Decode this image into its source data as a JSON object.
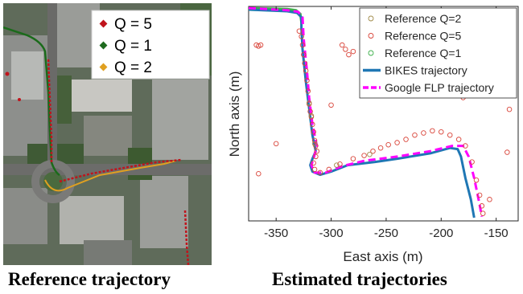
{
  "captions": {
    "left": "Reference trajectory",
    "right": "Estimated trajectories"
  },
  "map_legend": {
    "items": [
      {
        "label": "Q = 5",
        "color": "#c0141c"
      },
      {
        "label": "Q = 1",
        "color": "#1f6b1f"
      },
      {
        "label": "Q = 2",
        "color": "#e0a020"
      }
    ]
  },
  "chart_data": {
    "type": "scatter",
    "title": "",
    "xlabel": "East axis (m)",
    "ylabel": "North axis (m)",
    "xlim": [
      -375,
      -130
    ],
    "ylim": [
      -1,
      1
    ],
    "xticks": [
      -350,
      -300,
      -250,
      -200,
      -150
    ],
    "xtick_labels": [
      "-350",
      "-300",
      "-250",
      "-200",
      "-150"
    ],
    "grid": false,
    "legend_position": "top-right",
    "legend": [
      {
        "label": "Reference Q=2",
        "kind": "marker",
        "color": "#a08a4a"
      },
      {
        "label": "Reference Q=5",
        "kind": "marker",
        "color": "#d9453a"
      },
      {
        "label": "Reference Q=1",
        "kind": "marker",
        "color": "#3cb04a"
      },
      {
        "label": "BIKES trajectory",
        "kind": "line",
        "color": "#1f77b4"
      },
      {
        "label": "Google FLP trajectory",
        "kind": "dash",
        "color": "#ff00ff"
      }
    ],
    "series": [
      {
        "name": "Reference Q=1",
        "color": "#3cb04a",
        "style": "line",
        "points": [
          [
            -375,
            0.985
          ],
          [
            -340,
            0.975
          ],
          [
            -332,
            0.965
          ],
          [
            -328,
            0.93
          ],
          [
            -327,
            0.85
          ]
        ]
      },
      {
        "name": "BIKES trajectory",
        "color": "#1f77b4",
        "style": "line",
        "points": [
          [
            -375,
            0.97
          ],
          [
            -340,
            0.955
          ],
          [
            -331,
            0.94
          ],
          [
            -327,
            0.9
          ],
          [
            -327,
            0.8
          ],
          [
            -326,
            0.6
          ],
          [
            -323,
            0.3
          ],
          [
            -320,
            0.05
          ],
          [
            -317,
            -0.2
          ],
          [
            -314,
            -0.35
          ],
          [
            -317,
            -0.42
          ],
          [
            -319,
            -0.48
          ],
          [
            -317,
            -0.54
          ],
          [
            -310,
            -0.57
          ],
          [
            -300,
            -0.54
          ],
          [
            -285,
            -0.48
          ],
          [
            -260,
            -0.45
          ],
          [
            -240,
            -0.42
          ],
          [
            -210,
            -0.37
          ],
          [
            -192,
            -0.32
          ],
          [
            -185,
            -0.33
          ],
          [
            -182,
            -0.4
          ],
          [
            -178,
            -0.6
          ],
          [
            -173,
            -0.8
          ],
          [
            -170,
            -0.97
          ]
        ]
      },
      {
        "name": "Google FLP trajectory",
        "color": "#ff00ff",
        "style": "dash",
        "points": [
          [
            -375,
            0.985
          ],
          [
            -340,
            0.965
          ],
          [
            -330,
            0.95
          ],
          [
            -326,
            0.9
          ],
          [
            -325,
            0.7
          ],
          [
            -322,
            0.4
          ],
          [
            -320,
            0.15
          ],
          [
            -317,
            -0.1
          ],
          [
            -313,
            -0.3
          ],
          [
            -316,
            -0.42
          ],
          [
            -318,
            -0.48
          ],
          [
            -315,
            -0.55
          ],
          [
            -305,
            -0.55
          ],
          [
            -290,
            -0.49
          ],
          [
            -270,
            -0.44
          ],
          [
            -240,
            -0.4
          ],
          [
            -210,
            -0.35
          ],
          [
            -190,
            -0.3
          ],
          [
            -180,
            -0.3
          ],
          [
            -175,
            -0.4
          ],
          [
            -170,
            -0.6
          ],
          [
            -166,
            -0.8
          ],
          [
            -163,
            -0.96
          ]
        ]
      },
      {
        "name": "Reference Q=5",
        "color": "#d9453a",
        "style": "marker",
        "points": [
          [
            -368,
            0.64
          ],
          [
            -366,
            0.63
          ],
          [
            -364,
            0.64
          ],
          [
            -329,
            0.77
          ],
          [
            -327,
            0.72
          ],
          [
            -326,
            0.64
          ],
          [
            -325,
            0.55
          ],
          [
            -324,
            0.47
          ],
          [
            -323,
            0.4
          ],
          [
            -322,
            0.31
          ],
          [
            -321,
            0.21
          ],
          [
            -320,
            0.09
          ],
          [
            -319,
            0.02
          ],
          [
            -318,
            -0.03
          ],
          [
            -317,
            -0.1
          ],
          [
            -316,
            -0.17
          ],
          [
            -315,
            -0.25
          ],
          [
            -314,
            -0.3
          ],
          [
            -313,
            -0.35
          ],
          [
            -314,
            -0.4
          ],
          [
            -316,
            -0.46
          ],
          [
            -315,
            -0.52
          ],
          [
            -310,
            -0.55
          ],
          [
            -302,
            -0.52
          ],
          [
            -292,
            -0.47
          ],
          [
            -280,
            -0.42
          ],
          [
            -270,
            -0.39
          ],
          [
            -262,
            -0.35
          ],
          [
            -255,
            -0.32
          ],
          [
            -248,
            -0.29
          ],
          [
            -240,
            -0.27
          ],
          [
            -232,
            -0.24
          ],
          [
            -224,
            -0.2
          ],
          [
            -216,
            -0.18
          ],
          [
            -208,
            -0.16
          ],
          [
            -200,
            -0.17
          ],
          [
            -192,
            -0.2
          ],
          [
            -184,
            -0.24
          ],
          [
            -178,
            -0.3
          ],
          [
            -172,
            -0.45
          ],
          [
            -168,
            -0.62
          ],
          [
            -165,
            -0.76
          ],
          [
            -163,
            -0.86
          ],
          [
            -162,
            -0.93
          ],
          [
            -290,
            0.64
          ],
          [
            -287,
            0.6
          ],
          [
            -284,
            0.55
          ],
          [
            -280,
            0.58
          ],
          [
            -268,
            0.66
          ],
          [
            -265,
            0.59
          ],
          [
            -244,
            0.52
          ],
          [
            -211,
            0.64
          ],
          [
            -208,
            0.56
          ],
          [
            -205,
            0.6
          ],
          [
            -170,
            0.45
          ],
          [
            -180,
            0.15
          ],
          [
            -138,
            0.04
          ],
          [
            -140,
            -0.36
          ],
          [
            -300,
            0.08
          ],
          [
            -350,
            -0.28
          ],
          [
            -366,
            -0.56
          ],
          [
            -156,
            -0.8
          ]
        ]
      },
      {
        "name": "Reference Q=2",
        "color": "#a08a4a",
        "style": "marker",
        "points": [
          [
            -320,
            0.1
          ],
          [
            -318,
            -0.02
          ],
          [
            -315,
            -0.28
          ],
          [
            -295,
            -0.48
          ],
          [
            -265,
            -0.38
          ]
        ]
      }
    ]
  }
}
